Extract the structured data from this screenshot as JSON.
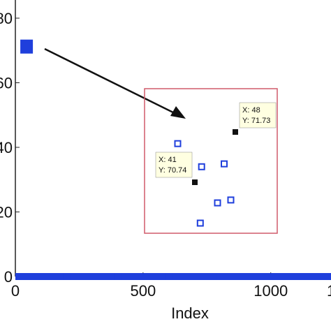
{
  "chart_data": {
    "type": "scatter",
    "title": "",
    "xlabel": "Index",
    "ylabel": "",
    "xlim": [
      0,
      1400
    ],
    "ylim": [
      0,
      80
    ],
    "xticks": [
      0,
      500,
      1000
    ],
    "yticks": [
      0,
      20,
      40,
      60,
      80
    ],
    "xtick_labels": [
      "0",
      "500",
      "1000"
    ],
    "ytick_labels": [
      "0",
      "20",
      "40",
      "60",
      "80"
    ],
    "grid": false,
    "marker_color": "#1f3fdc",
    "series": [
      {
        "marker": "filled-square",
        "points": [
          [
            40,
            0
          ],
          [
            200,
            0
          ],
          [
            400,
            0
          ],
          [
            600,
            0
          ],
          [
            800,
            0
          ],
          [
            1000,
            0
          ],
          [
            1200,
            0
          ],
          [
            1400,
            0
          ]
        ]
      },
      {
        "marker": "filled-square",
        "points": [
          [
            41,
            70.74
          ],
          [
            48,
            71.73
          ]
        ]
      }
    ],
    "inset": {
      "border_color": "#d05a6a",
      "points": [
        {
          "label": "",
          "xv": 0.25,
          "yv": 0.62
        },
        {
          "label": "",
          "xv": 0.43,
          "yv": 0.46
        },
        {
          "label": "",
          "xv": 0.6,
          "yv": 0.48
        },
        {
          "label": "",
          "xv": 0.55,
          "yv": 0.21
        },
        {
          "label": "",
          "xv": 0.65,
          "yv": 0.23
        },
        {
          "label": "",
          "xv": 0.42,
          "yv": 0.07
        }
      ],
      "datatips": [
        {
          "x_text": "X: 41",
          "y_text": "Y: 70.74",
          "px": 0.38,
          "py": 0.36
        },
        {
          "x_text": "X: 48",
          "y_text": "Y: 71.73",
          "px": 0.69,
          "py": 0.69
        }
      ]
    }
  }
}
